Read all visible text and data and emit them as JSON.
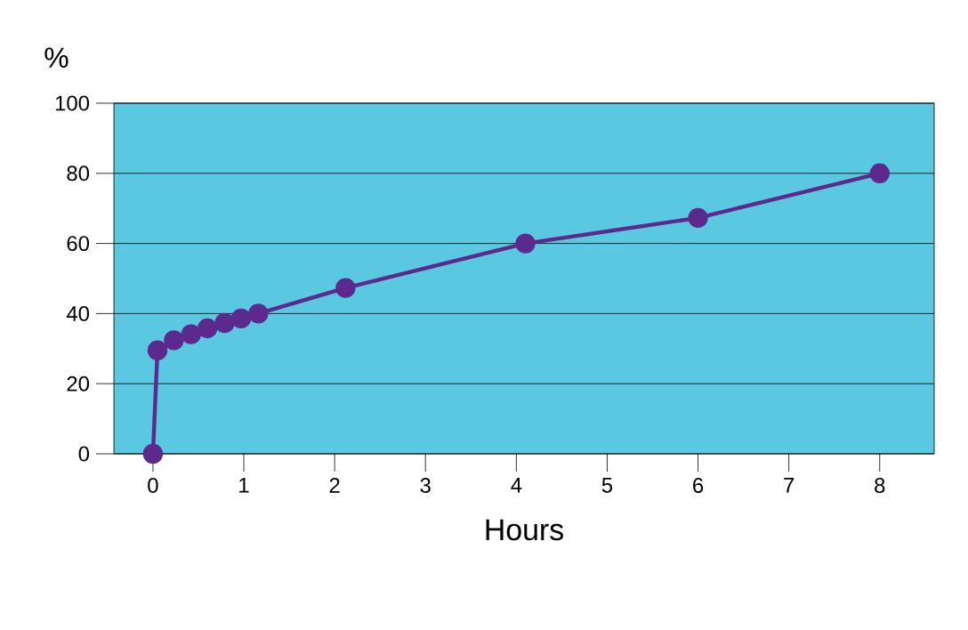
{
  "chart_data": {
    "type": "line",
    "xlabel": "Hours",
    "ylabel": "%",
    "x": [
      0,
      0.05,
      0.23,
      0.42,
      0.6,
      0.79,
      0.97,
      1.16,
      2.12,
      4.1,
      6.0,
      8.0
    ],
    "series": [
      {
        "color": "#5b2a8c",
        "values": [
          0,
          29.5,
          32.4,
          34.1,
          35.8,
          37.3,
          38.6,
          40,
          47.3,
          60,
          67.3,
          80
        ]
      }
    ],
    "xlim": [
      -0.43,
      8.6
    ],
    "xticks": [
      0,
      1,
      2,
      3,
      4,
      5,
      6,
      7,
      8
    ],
    "ylim": [
      0,
      100
    ],
    "yticks": [
      0,
      20,
      40,
      60,
      80,
      100
    ],
    "grid": "y",
    "marker": "circle",
    "line_style": "solid"
  }
}
